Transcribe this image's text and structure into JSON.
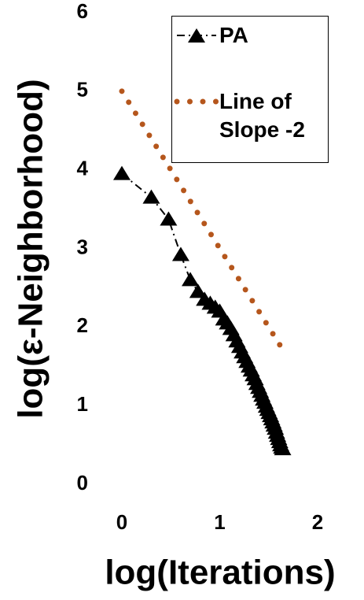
{
  "chart_data": {
    "type": "line",
    "x_label": "log(Iterations)",
    "y_label": "log(ε-Neighborhood)",
    "xlim": [
      0,
      2
    ],
    "xticks": [
      0,
      1,
      2
    ],
    "ylim": [
      0,
      6
    ],
    "yticks": [
      0,
      1,
      2,
      3,
      4,
      5,
      6
    ],
    "legend": "top-right",
    "series": [
      {
        "name": "PA",
        "color": "#000000",
        "marker": "triangle",
        "line": "dashdot",
        "x": [
          0,
          0.301,
          0.477,
          0.602,
          0.699,
          0.778,
          0.845,
          0.903,
          0.954,
          1.0,
          1.041,
          1.079,
          1.114,
          1.146,
          1.176,
          1.204,
          1.23,
          1.255,
          1.279,
          1.301,
          1.322,
          1.342,
          1.362,
          1.38,
          1.398,
          1.415,
          1.431,
          1.447,
          1.462,
          1.477,
          1.491,
          1.505,
          1.519,
          1.531,
          1.544,
          1.556,
          1.568,
          1.58,
          1.591,
          1.602,
          1.613,
          1.623,
          1.633,
          1.643
        ],
        "values": [
          3.95,
          3.65,
          3.37,
          2.92,
          2.6,
          2.45,
          2.35,
          2.3,
          2.25,
          2.2,
          2.1,
          2.05,
          1.98,
          1.9,
          1.82,
          1.75,
          1.68,
          1.62,
          1.56,
          1.5,
          1.45,
          1.39,
          1.34,
          1.28,
          1.23,
          1.18,
          1.13,
          1.08,
          1.04,
          0.99,
          0.95,
          0.91,
          0.87,
          0.83,
          0.79,
          0.75,
          0.71,
          0.66,
          0.62,
          0.58,
          0.54,
          0.5,
          0.47,
          0.45
        ]
      },
      {
        "name": "Line of Slope -2",
        "color": "#b5561c",
        "marker": "none",
        "line": "dotted",
        "x": [
          0,
          1.62
        ],
        "values": [
          5,
          1.76
        ]
      }
    ]
  }
}
